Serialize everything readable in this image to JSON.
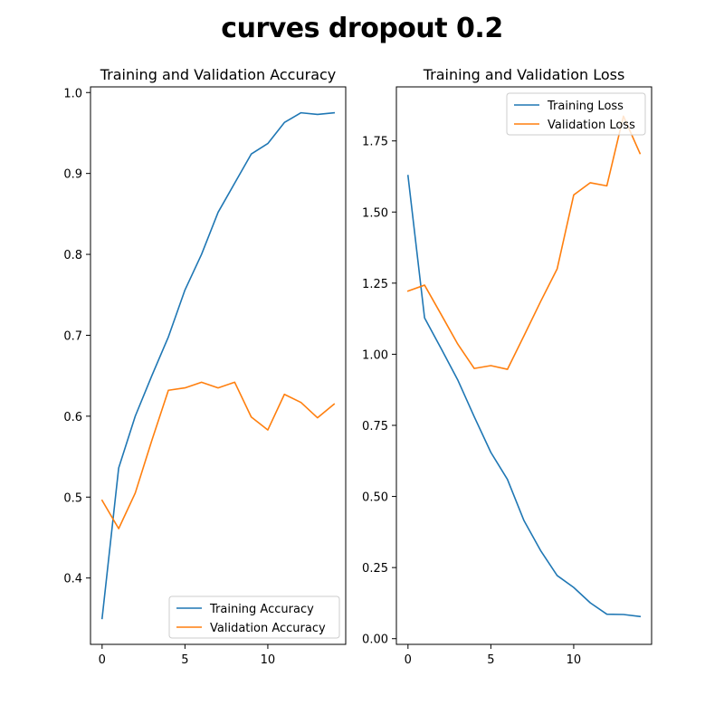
{
  "suptitle": "curves dropout 0.2",
  "chart_data": [
    {
      "type": "line",
      "title": "Training and Validation Accuracy",
      "xlabel": "",
      "ylabel": "",
      "x": [
        0,
        1,
        2,
        3,
        4,
        5,
        6,
        7,
        8,
        9,
        10,
        11,
        12,
        13,
        14
      ],
      "xlim": [
        -0.7,
        14.7
      ],
      "ylim": [
        0.318,
        1.007
      ],
      "xticks": [
        0,
        5,
        10
      ],
      "yticks": [
        0.4,
        0.5,
        0.6,
        0.7,
        0.8,
        0.9,
        1.0
      ],
      "ytick_labels": [
        "0.4",
        "0.5",
        "0.6",
        "0.7",
        "0.8",
        "0.9",
        "1.0"
      ],
      "legend_position": "lower-right",
      "grid": false,
      "series": [
        {
          "name": "Training Accuracy",
          "color": "#1f77b4",
          "values": [
            0.35,
            0.536,
            0.6,
            0.65,
            0.698,
            0.756,
            0.8,
            0.852,
            0.888,
            0.924,
            0.937,
            0.963,
            0.975,
            0.973,
            0.975
          ]
        },
        {
          "name": "Validation Accuracy",
          "color": "#ff7f0e",
          "values": [
            0.496,
            0.461,
            0.505,
            0.57,
            0.632,
            0.635,
            0.642,
            0.635,
            0.642,
            0.599,
            0.583,
            0.627,
            0.617,
            0.598,
            0.615
          ]
        }
      ]
    },
    {
      "type": "line",
      "title": "Training and Validation Loss",
      "xlabel": "",
      "ylabel": "",
      "x": [
        0,
        1,
        2,
        3,
        4,
        5,
        6,
        7,
        8,
        9,
        10,
        11,
        12,
        13,
        14
      ],
      "xlim": [
        -0.7,
        14.7
      ],
      "ylim": [
        -0.02,
        1.94
      ],
      "xticks": [
        0,
        5,
        10
      ],
      "yticks": [
        0.0,
        0.25,
        0.5,
        0.75,
        1.0,
        1.25,
        1.5,
        1.75
      ],
      "ytick_labels": [
        "0.00",
        "0.25",
        "0.50",
        "0.75",
        "1.00",
        "1.25",
        "1.50",
        "1.75"
      ],
      "legend_position": "upper-right",
      "grid": false,
      "series": [
        {
          "name": "Training Loss",
          "color": "#1f77b4",
          "values": [
            1.628,
            1.128,
            1.02,
            0.91,
            0.78,
            0.655,
            0.56,
            0.415,
            0.31,
            0.222,
            0.18,
            0.126,
            0.086,
            0.085,
            0.078
          ]
        },
        {
          "name": "Validation Loss",
          "color": "#ff7f0e",
          "values": [
            1.222,
            1.243,
            1.14,
            1.036,
            0.95,
            0.96,
            0.947,
            1.065,
            1.185,
            1.3,
            1.56,
            1.603,
            1.592,
            1.837,
            1.706
          ]
        }
      ]
    }
  ]
}
